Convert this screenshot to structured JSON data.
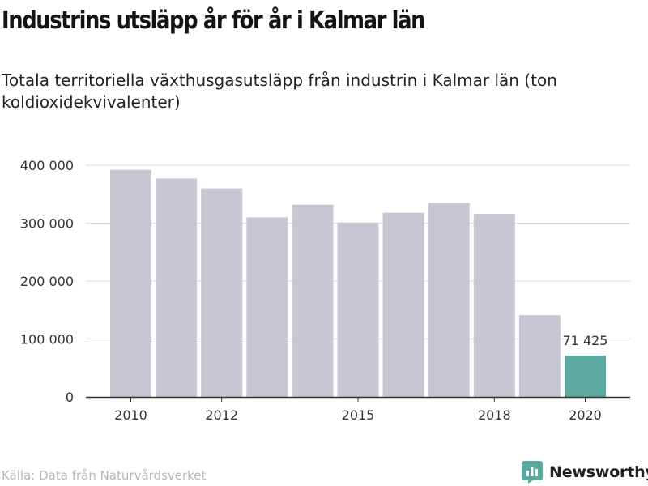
{
  "title": "Industrins utsläpp år för år i Kalmar län",
  "subtitle": "Totala territoriella växthusgasutsläpp från industrin i Kalmar län (ton koldioxidekvivalenter)",
  "source": "Källa: Data från Naturvårdsverket",
  "brand": {
    "name": "Newsworthy",
    "color": "#5ba8a0",
    "icon": "newsworthy-logo-icon"
  },
  "colors": {
    "bar": "#c8c6d2",
    "highlight": "#5ba8a0",
    "grid": "#d9d9d9",
    "axis": "#333333",
    "text": "#333333"
  },
  "chart_data": {
    "type": "bar",
    "categories": [
      "2010",
      "2011",
      "2012",
      "2013",
      "2014",
      "2015",
      "2016",
      "2017",
      "2018",
      "2019",
      "2020"
    ],
    "values": [
      392000,
      377000,
      360000,
      310000,
      332000,
      301000,
      318000,
      335000,
      316000,
      141000,
      71425
    ],
    "ylim": [
      0,
      400000
    ],
    "yticks": [
      0,
      100000,
      200000,
      300000,
      400000
    ],
    "ytick_labels": [
      "0",
      "100 000",
      "200 000",
      "300 000",
      "400 000"
    ],
    "xtick_labels": [
      "2010",
      "2012",
      "2015",
      "2018",
      "2020"
    ],
    "highlight_index": 10,
    "annotation": {
      "label": "71 425"
    },
    "grid": true
  }
}
